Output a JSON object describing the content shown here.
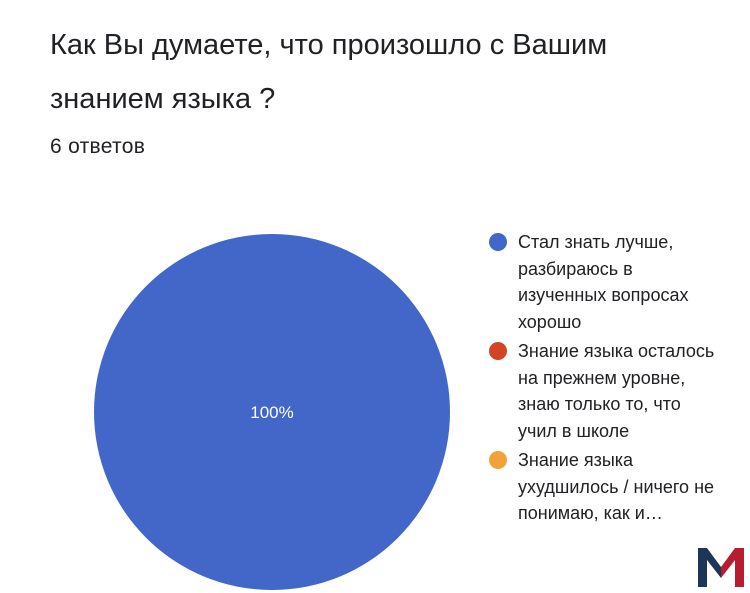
{
  "question": {
    "title": "Как Вы думаете, что произошло с Вашим знанием языка ?",
    "responses": "6 ответов"
  },
  "colors": {
    "series1": "#4267c9",
    "series2": "#d14526",
    "series3": "#f0a33a",
    "logo": "#b71c2f",
    "logo_dark": "#1d3557"
  },
  "logo": {
    "icon": "m-logo-icon"
  },
  "chart_data": {
    "type": "pie",
    "title": "Как Вы думаете, что произошло с Вашим знанием языка ?",
    "total_responses": 6,
    "legend_position": "right",
    "slices": [
      {
        "label": "Стал знать лучше, разбираюсь в изученных вопросах хорошо",
        "value": 100,
        "display": "100%",
        "color": "#4267c9"
      },
      {
        "label": "Знание языка осталось на прежнем уровне, знаю только то, что учил в школе",
        "value": 0,
        "display": "",
        "color": "#d14526"
      },
      {
        "label": "Знание языка ухудшилось / ничего не понимаю, как и…",
        "value": 0,
        "display": "",
        "color": "#f0a33a"
      }
    ]
  }
}
